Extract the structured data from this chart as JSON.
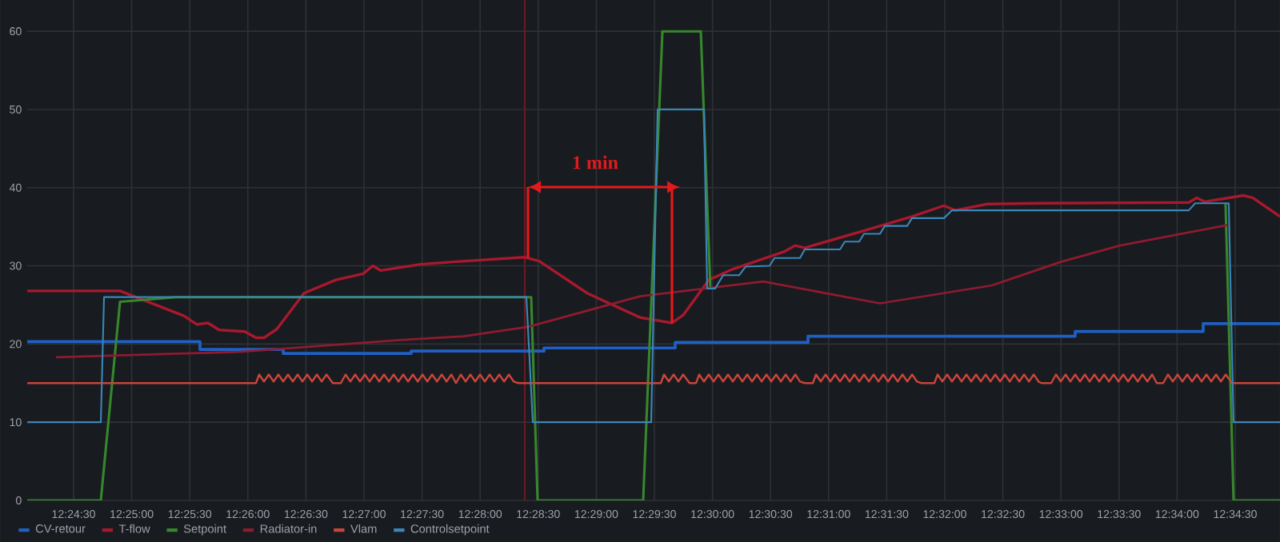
{
  "chart_data": {
    "type": "line",
    "grid": true,
    "legend": "bottom left",
    "xlim": [
      12.40168,
      12.58143
    ],
    "ylim": [
      0,
      64
    ],
    "xticks": [
      {
        "value": 12.408333,
        "label": "12:24:30"
      },
      {
        "value": 12.416667,
        "label": "12:25:00"
      },
      {
        "value": 12.425,
        "label": "12:25:30"
      },
      {
        "value": 12.433333,
        "label": "12:26:00"
      },
      {
        "value": 12.441667,
        "label": "12:26:30"
      },
      {
        "value": 12.45,
        "label": "12:27:00"
      },
      {
        "value": 12.458333,
        "label": "12:27:30"
      },
      {
        "value": 12.466667,
        "label": "12:28:00"
      },
      {
        "value": 12.475,
        "label": "12:28:30"
      },
      {
        "value": 12.483333,
        "label": "12:29:00"
      },
      {
        "value": 12.491667,
        "label": "12:29:30"
      },
      {
        "value": 12.5,
        "label": "12:30:00"
      },
      {
        "value": 12.508333,
        "label": "12:30:30"
      },
      {
        "value": 12.516667,
        "label": "12:31:00"
      },
      {
        "value": 12.525,
        "label": "12:31:30"
      },
      {
        "value": 12.533333,
        "label": "12:32:00"
      },
      {
        "value": 12.541667,
        "label": "12:32:30"
      },
      {
        "value": 12.55,
        "label": "12:33:00"
      },
      {
        "value": 12.558333,
        "label": "12:33:30"
      },
      {
        "value": 12.566667,
        "label": "12:34:00"
      },
      {
        "value": 12.575,
        "label": "12:34:30"
      }
    ],
    "yticks": [
      0,
      10,
      20,
      30,
      40,
      50,
      60
    ],
    "ref_lines": [
      {
        "axis": "x",
        "value": 12.47307,
        "color": "#6e1a22"
      }
    ],
    "annotations": [
      "1 min"
    ],
    "series": [
      {
        "name": "CV-retour",
        "type": "step",
        "color": "#1f60c4",
        "x": [
          12.40168,
          12.42647,
          12.43841,
          12.45677,
          12.47583,
          12.49465,
          12.51371,
          12.55204,
          12.57041,
          12.58143
        ],
        "values": [
          20.3,
          19.3,
          18.8,
          19.1,
          19.5,
          20.2,
          21.0,
          21.6,
          22.6,
          22.6
        ]
      },
      {
        "name": "T-flow",
        "color": "#a8192e",
        "x": [
          12.40168,
          12.41499,
          12.42417,
          12.42601,
          12.42762,
          12.42922,
          12.4329,
          12.4345,
          12.43565,
          12.43749,
          12.44139,
          12.44598,
          12.44989,
          12.45126,
          12.45241,
          12.45815,
          12.46274,
          12.47307,
          12.47514,
          12.48203,
          12.4896,
          12.49419,
          12.4958,
          12.49947,
          12.50269,
          12.51026,
          12.51187,
          12.51325,
          12.52174,
          12.52863,
          12.53322,
          12.53483,
          12.53942,
          12.54699,
          12.56834,
          12.56949,
          12.57064,
          12.57615,
          12.57753,
          12.58143
        ],
        "values": [
          26.8,
          26.8,
          23.6,
          22.5,
          22.7,
          21.8,
          21.6,
          20.8,
          20.8,
          21.9,
          26.5,
          28.2,
          29.0,
          30.0,
          29.4,
          30.2,
          30.5,
          31.1,
          30.6,
          26.5,
          23.4,
          22.7,
          23.7,
          28.2,
          29.5,
          31.8,
          32.6,
          32.3,
          34.5,
          36.3,
          37.7,
          37.1,
          37.9,
          38.0,
          38.1,
          38.7,
          38.2,
          39.0,
          38.7,
          36.3
        ]
      },
      {
        "name": "Setpoint",
        "color": "#37872d",
        "x": [
          12.40168,
          12.41224,
          12.41499,
          12.42303,
          12.47399,
          12.47491,
          12.49006,
          12.49282,
          12.49833,
          12.4997,
          12.53552,
          12.57362,
          12.57477,
          12.58143
        ],
        "values": [
          0,
          0,
          25.4,
          26.0,
          26.0,
          0,
          0,
          60,
          60,
          27.1,
          null,
          38.0,
          0,
          0
        ]
      },
      {
        "name": "Radiator-in",
        "color": "#8e1b30",
        "x": [
          12.40581,
          12.43221,
          12.45517,
          12.46435,
          12.47353,
          12.4896,
          12.50728,
          12.52404,
          12.54011,
          12.54998,
          12.55847,
          12.57385
        ],
        "values": [
          18.3,
          19.0,
          20.5,
          21.0,
          22.2,
          26.1,
          28.0,
          25.2,
          27.5,
          30.5,
          32.6,
          35.2
        ]
      },
      {
        "name": "Vlam",
        "color": "#c8453a",
        "x": [
          12.40168,
          12.4345,
          12.43496,
          12.43565,
          12.43634,
          12.43703,
          12.43772,
          12.43841,
          12.4391,
          12.43979,
          12.44048,
          12.44117,
          12.44186,
          12.44255,
          12.44324,
          12.44393,
          12.44462,
          12.44553,
          12.44668,
          12.44736,
          12.44805,
          12.44874,
          12.44943,
          12.45012,
          12.45081,
          12.4515,
          12.45219,
          12.45288,
          12.45357,
          12.45426,
          12.45495,
          12.45564,
          12.45633,
          12.45702,
          12.45771,
          12.4584,
          12.45909,
          12.45978,
          12.46047,
          12.46116,
          12.46185,
          12.46254,
          12.4632,
          12.46389,
          12.46458,
          12.46527,
          12.46596,
          12.46665,
          12.46734,
          12.46803,
          12.46872,
          12.46941,
          12.4701,
          12.47079,
          12.47148,
          12.47216,
          12.49259,
          12.49305,
          12.49374,
          12.49443,
          12.49512,
          12.4958,
          12.49672,
          12.49764,
          12.4981,
          12.49878,
          12.49947,
          12.50016,
          12.50085,
          12.50154,
          12.50223,
          12.50292,
          12.50361,
          12.5043,
          12.50499,
          12.50568,
          12.50637,
          12.50706,
          12.50775,
          12.50844,
          12.50913,
          12.50982,
          12.51051,
          12.5112,
          12.51189,
          12.51256,
          12.51325,
          12.5144,
          12.51485,
          12.51554,
          12.51623,
          12.51692,
          12.51761,
          12.5183,
          12.51899,
          12.51968,
          12.52037,
          12.52106,
          12.52175,
          12.52244,
          12.52313,
          12.52382,
          12.52451,
          12.5252,
          12.52589,
          12.52658,
          12.52727,
          12.52796,
          12.52865,
          12.52934,
          12.53,
          12.53184,
          12.5323,
          12.53299,
          12.53368,
          12.53437,
          12.53506,
          12.53575,
          12.53644,
          12.53713,
          12.53782,
          12.53851,
          12.5392,
          12.53989,
          12.54058,
          12.54127,
          12.54196,
          12.54265,
          12.54334,
          12.54403,
          12.54472,
          12.54541,
          12.5461,
          12.54679,
          12.54722,
          12.5486,
          12.54929,
          12.54998,
          12.55067,
          12.55136,
          12.55205,
          12.55274,
          12.55343,
          12.55412,
          12.55481,
          12.5555,
          12.55619,
          12.55688,
          12.55757,
          12.55826,
          12.55895,
          12.55964,
          12.56033,
          12.56102,
          12.56171,
          12.5624,
          12.56309,
          12.56375,
          12.56467,
          12.56536,
          12.56605,
          12.56674,
          12.56743,
          12.56812,
          12.56881,
          12.5695,
          12.57019,
          12.57088,
          12.57157,
          12.57226,
          12.57295,
          12.57364,
          12.57456,
          12.58143
        ],
        "values": [
          15.0,
          15.0,
          16.1,
          15.2,
          16.1,
          15.2,
          16.1,
          15.2,
          16.1,
          15.2,
          16.1,
          15.2,
          16.1,
          15.2,
          16.1,
          15.2,
          16.1,
          15.0,
          15.0,
          16.1,
          15.2,
          16.1,
          15.2,
          16.1,
          15.2,
          16.1,
          15.2,
          16.1,
          15.2,
          16.1,
          15.2,
          16.1,
          15.2,
          16.1,
          15.2,
          16.1,
          15.2,
          16.1,
          15.2,
          16.1,
          15.2,
          16.1,
          15.0,
          16.1,
          15.2,
          16.1,
          15.2,
          16.1,
          15.2,
          16.1,
          15.2,
          16.1,
          15.2,
          16.1,
          15.2,
          15.0,
          15.0,
          16.1,
          15.2,
          16.1,
          15.2,
          16.1,
          15.0,
          15.0,
          16.1,
          15.2,
          16.1,
          15.2,
          16.1,
          15.2,
          16.1,
          15.2,
          16.1,
          15.2,
          16.1,
          15.2,
          16.1,
          15.2,
          16.1,
          15.2,
          16.1,
          15.2,
          16.1,
          15.2,
          16.1,
          15.2,
          15.0,
          15.0,
          16.1,
          15.2,
          16.1,
          15.2,
          16.1,
          15.2,
          16.1,
          15.2,
          16.1,
          15.2,
          16.1,
          15.2,
          16.1,
          15.2,
          16.1,
          15.2,
          16.1,
          15.2,
          16.1,
          15.2,
          16.1,
          15.2,
          15.0,
          15.0,
          16.1,
          15.2,
          16.1,
          15.2,
          16.1,
          15.2,
          16.1,
          15.2,
          16.1,
          15.2,
          16.1,
          15.2,
          16.1,
          15.2,
          16.1,
          15.2,
          16.1,
          15.2,
          16.1,
          15.2,
          16.1,
          15.2,
          15.0,
          15.0,
          16.1,
          15.2,
          16.1,
          15.2,
          16.1,
          15.2,
          16.1,
          15.2,
          16.1,
          15.2,
          16.1,
          15.2,
          16.1,
          15.2,
          16.1,
          15.2,
          16.1,
          15.2,
          16.1,
          15.2,
          16.1,
          15.0,
          15.0,
          16.1,
          15.2,
          16.1,
          15.2,
          16.1,
          15.2,
          16.1,
          15.2,
          16.1,
          15.2,
          16.1,
          15.2,
          16.1,
          15.0,
          15.0
        ]
      },
      {
        "name": "Controlsetpoint",
        "color": "#3a86b8",
        "x": [
          12.40168,
          12.41224,
          12.4127,
          12.4733,
          12.47422,
          12.49121,
          12.49213,
          12.49878,
          12.49924,
          12.50039,
          12.50154,
          12.50383,
          12.50475,
          12.5082,
          12.50889,
          12.51256,
          12.51325,
          12.5183,
          12.51899,
          12.52105,
          12.52174,
          12.52404,
          12.52473,
          12.52794,
          12.52863,
          12.53322,
          12.53437,
          12.56834,
          12.56926,
          12.57408,
          12.57477,
          12.58143
        ],
        "values": [
          10,
          10,
          26,
          26,
          10,
          10,
          50,
          50,
          27.1,
          27.1,
          28.8,
          28.8,
          29.9,
          30.0,
          31.0,
          31.0,
          32.1,
          32.1,
          33.1,
          33.1,
          34.1,
          34.1,
          35.1,
          35.1,
          36.1,
          36.1,
          37.1,
          37.1,
          38.0,
          38.0,
          10,
          10
        ]
      }
    ]
  }
}
